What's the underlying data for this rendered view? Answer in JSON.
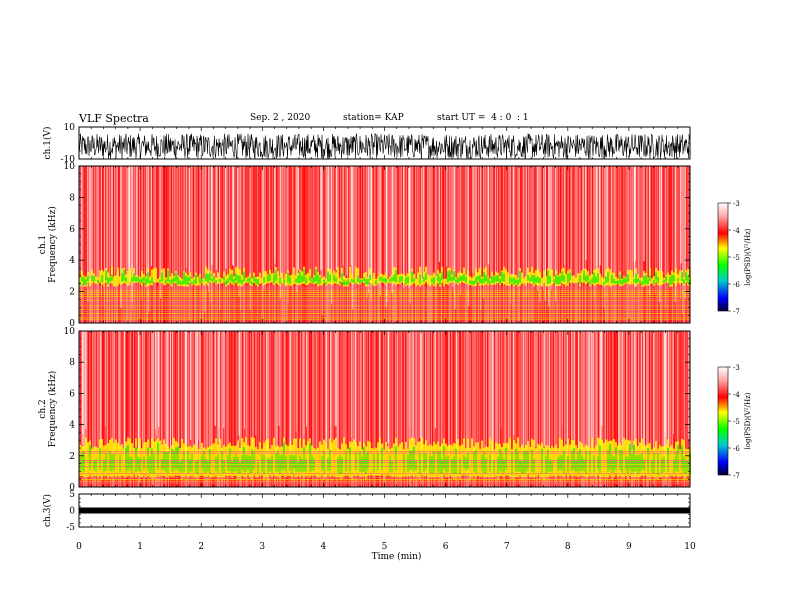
{
  "header": {
    "title": "VLF Spectra",
    "date": "Sep. 2 , 2020",
    "station": "station= KAP",
    "start": "start UT =  4 : 0  : 1"
  },
  "colors": {
    "axis": "#000000",
    "colormap": [
      "#ffffff",
      "#ffaaaa",
      "#ff0000",
      "#ffff00",
      "#00ff00",
      "#00cccc",
      "#0000ff",
      "#000033"
    ]
  },
  "chart_data": [
    {
      "type": "line",
      "panel": "ch1-waveform",
      "ylabel": "ch.1(V)",
      "ylim": [
        -10,
        10
      ],
      "yticks": [
        "10",
        "-10"
      ],
      "xlim": [
        0,
        10
      ],
      "description_values": {
        "amplitude_range": [
          -10,
          10
        ]
      }
    },
    {
      "type": "heatmap",
      "panel": "ch1-spectrogram",
      "ylabel": "ch.1\nFrequency (kHz)",
      "ylim": [
        0,
        10
      ],
      "yticks": [
        "0",
        "2",
        "4",
        "6",
        "8",
        "10"
      ],
      "xlim": [
        0,
        10
      ],
      "green_band_khz": [
        2.3,
        3.6
      ],
      "colorbar": {
        "label": "log(PSD)(V²/Hz)",
        "range": [
          -7,
          -3
        ],
        "ticks": [
          "-3",
          "-4",
          "-5",
          "-6",
          "-7"
        ]
      }
    },
    {
      "type": "heatmap",
      "panel": "ch2-spectrogram",
      "ylabel": "ch.2\nFrequency (kHz)",
      "ylim": [
        0,
        10
      ],
      "yticks": [
        "0",
        "2",
        "4",
        "6",
        "8",
        "10"
      ],
      "xlim": [
        0,
        10
      ],
      "green_band_khz": [
        0.5,
        3.2
      ],
      "colorbar": {
        "label": "log(PSD)(V²/Hz)",
        "range": [
          -7,
          -3
        ],
        "ticks": [
          "-3",
          "-4",
          "-5",
          "-6",
          "-7"
        ]
      }
    },
    {
      "type": "line",
      "panel": "ch3-waveform",
      "ylabel": "ch.3(V)",
      "ylim": [
        -5,
        5
      ],
      "yticks": [
        "5",
        "0",
        "-5"
      ],
      "xlim": [
        0,
        10
      ],
      "level_v": 0
    }
  ],
  "xaxis": {
    "label": "Time (min)",
    "ticks": [
      "0",
      "1",
      "2",
      "3",
      "4",
      "5",
      "6",
      "7",
      "8",
      "9",
      "10"
    ],
    "range": [
      0,
      10
    ]
  }
}
